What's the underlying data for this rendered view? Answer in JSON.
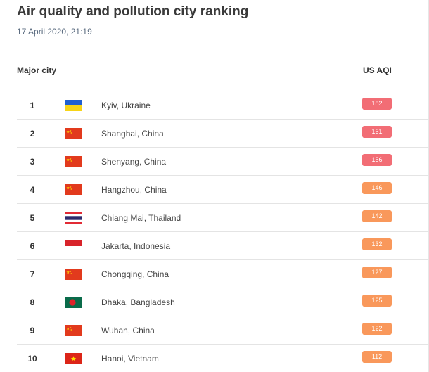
{
  "header": {
    "title": "Air quality and pollution city ranking",
    "timestamp": "17 April 2020, 21:19"
  },
  "table": {
    "columns": {
      "city": "Major city",
      "aqi": "US AQI"
    },
    "rows": [
      {
        "rank": "1",
        "flag": "ukraine-flag-icon",
        "city": "Kyiv, Ukraine",
        "aqi": "182",
        "aqi_color": "#f26d75"
      },
      {
        "rank": "2",
        "flag": "china-flag-icon",
        "city": "Shanghai, China",
        "aqi": "161",
        "aqi_color": "#f26d75"
      },
      {
        "rank": "3",
        "flag": "china-flag-icon",
        "city": "Shenyang, China",
        "aqi": "156",
        "aqi_color": "#f26d75"
      },
      {
        "rank": "4",
        "flag": "china-flag-icon",
        "city": "Hangzhou, China",
        "aqi": "146",
        "aqi_color": "#f9985b"
      },
      {
        "rank": "5",
        "flag": "thailand-flag-icon",
        "city": "Chiang Mai, Thailand",
        "aqi": "142",
        "aqi_color": "#f9985b"
      },
      {
        "rank": "6",
        "flag": "indonesia-flag-icon",
        "city": "Jakarta, Indonesia",
        "aqi": "132",
        "aqi_color": "#f9985b"
      },
      {
        "rank": "7",
        "flag": "china-flag-icon",
        "city": "Chongqing, China",
        "aqi": "127",
        "aqi_color": "#f9985b"
      },
      {
        "rank": "8",
        "flag": "bangladesh-flag-icon",
        "city": "Dhaka, Bangladesh",
        "aqi": "125",
        "aqi_color": "#f9985b"
      },
      {
        "rank": "9",
        "flag": "china-flag-icon",
        "city": "Wuhan, China",
        "aqi": "122",
        "aqi_color": "#f9985b"
      },
      {
        "rank": "10",
        "flag": "vietnam-flag-icon",
        "city": "Hanoi, Vietnam",
        "aqi": "112",
        "aqi_color": "#f9985b"
      }
    ]
  }
}
